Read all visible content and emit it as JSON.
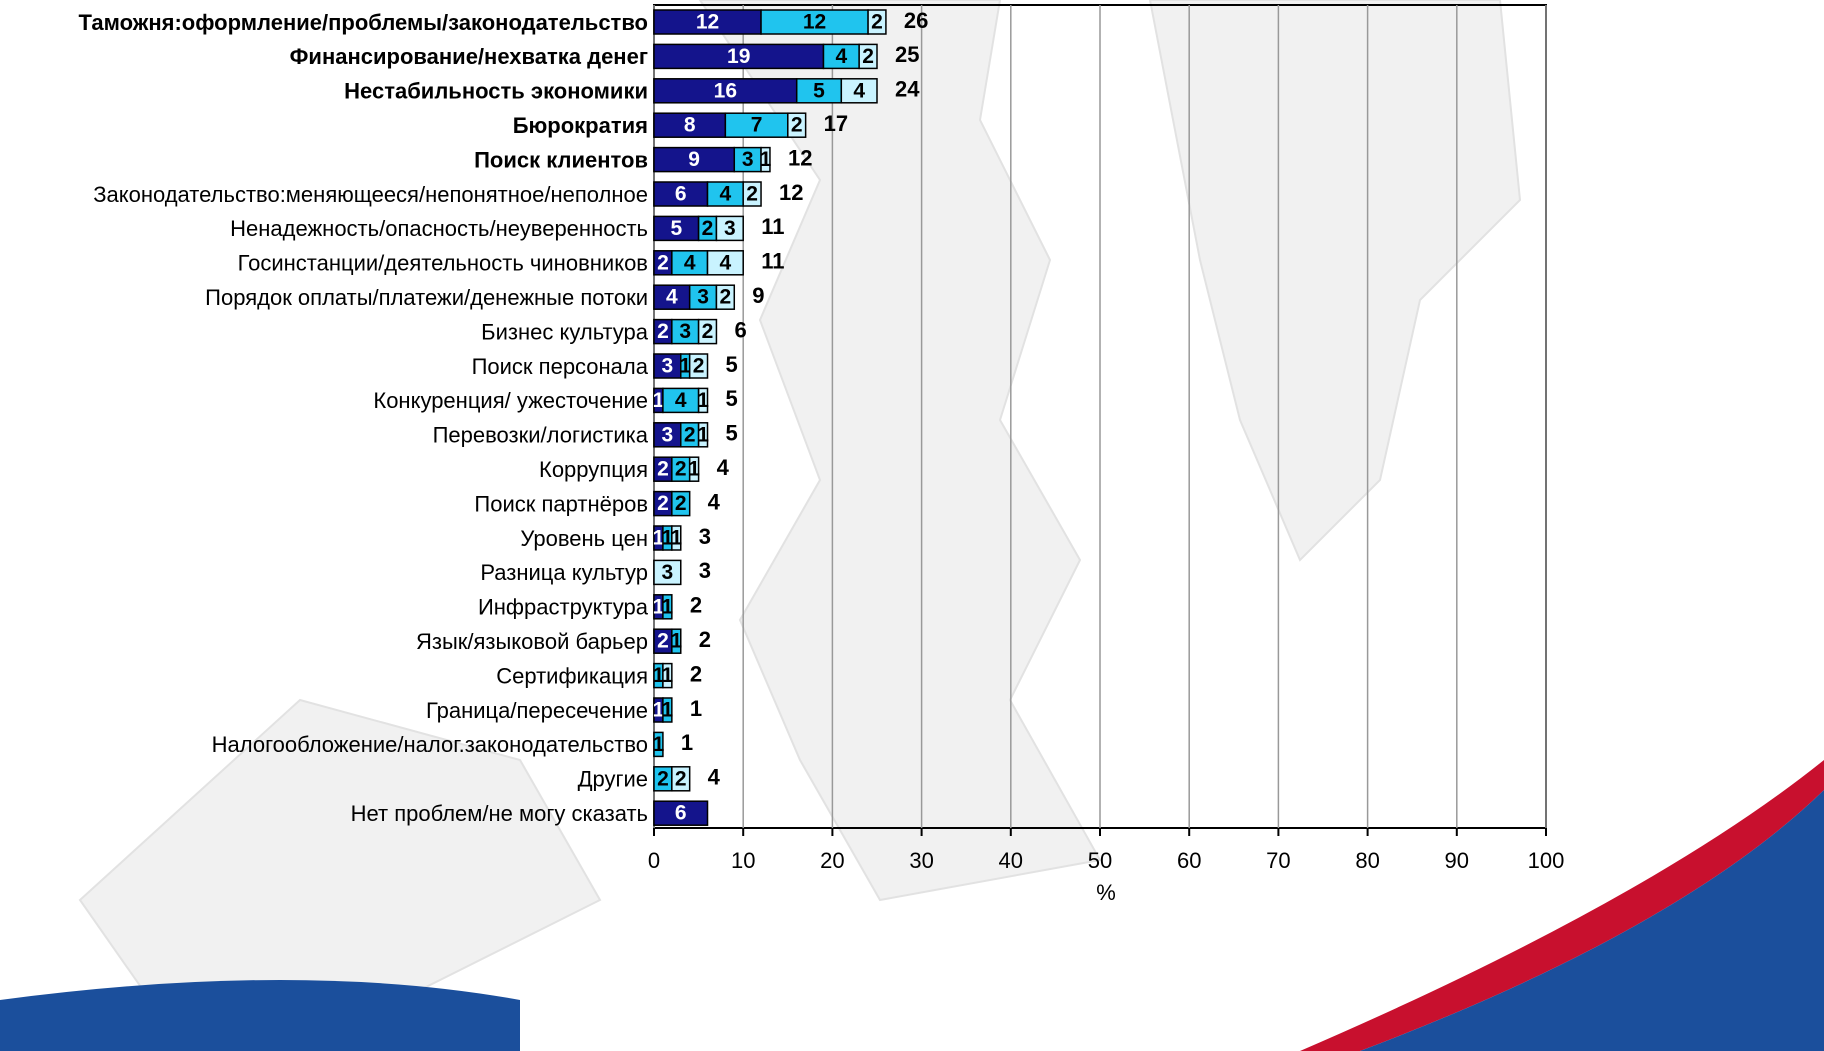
{
  "chart_data": {
    "type": "stacked-bar-horizontal",
    "x_label": "%",
    "categories": [
      "Таможня:оформление/проблемы/законодательство",
      "Финансирование/нехватка денег",
      "Нестабильность экономики",
      "Бюрократия",
      "Поиск клиентов",
      "Законодательство:меняющееся/непонятное/неполное",
      "Ненадежность/опасность/неуверенность",
      "Госинстанции/деятельность чиновников",
      "Порядок оплаты/платежи/денежные потоки",
      "Бизнес культура",
      "Поиск персонала",
      "Конкуренция/ ужесточение",
      "Перевозки/логистика",
      "Коррупция",
      "Поиск партнёров",
      "Уровень цен",
      "Разница культур",
      "Инфраструктура",
      "Язык/языковой барьер",
      "Сертификация",
      "Граница/пересечение",
      "Налогообложение/налог.законодательство",
      "Другие",
      "Нет проблем/не могу сказать"
    ],
    "series": [
      {
        "color": "#14148c",
        "values": [
          12,
          19,
          16,
          8,
          9,
          6,
          5,
          2,
          4,
          2,
          3,
          1,
          3,
          2,
          2,
          1,
          null,
          1,
          2,
          null,
          1,
          null,
          null,
          6
        ]
      },
      {
        "color": "#20c4ee",
        "values": [
          12,
          4,
          5,
          7,
          3,
          4,
          2,
          4,
          3,
          3,
          1,
          4,
          2,
          2,
          2,
          1,
          null,
          1,
          1,
          1,
          1,
          1,
          2,
          null
        ]
      },
      {
        "color": "#c9f3ff",
        "values": [
          2,
          2,
          4,
          2,
          1,
          2,
          3,
          4,
          2,
          2,
          2,
          1,
          1,
          1,
          null,
          1,
          3,
          null,
          null,
          1,
          null,
          null,
          2,
          null
        ]
      }
    ],
    "totals": [
      26,
      25,
      24,
      17,
      12,
      12,
      11,
      11,
      9,
      6,
      5,
      5,
      5,
      4,
      4,
      3,
      3,
      2,
      2,
      2,
      1,
      1,
      4,
      null
    ],
    "xlim": [
      0,
      100
    ],
    "xticks": [
      0,
      10,
      20,
      30,
      40,
      50,
      60,
      70,
      80,
      90,
      100
    ],
    "grid": true
  }
}
